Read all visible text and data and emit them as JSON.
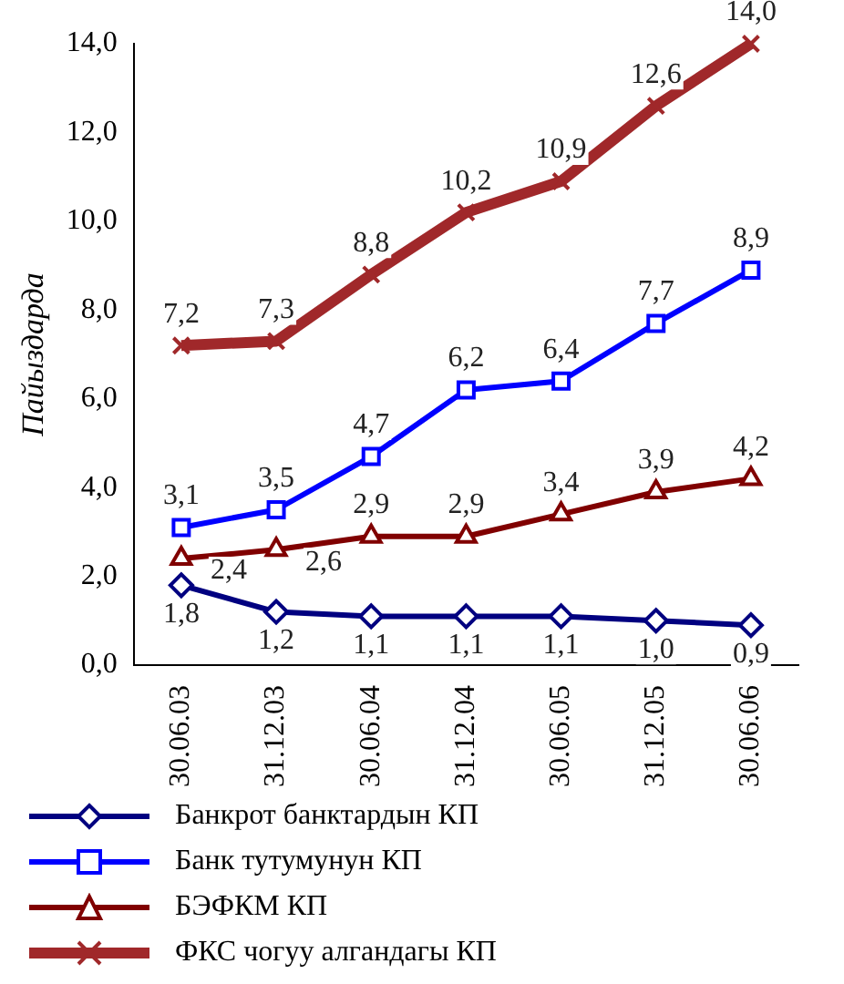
{
  "chart_data": {
    "type": "line",
    "ylabel": "Пайыздарда",
    "categories": [
      "30.06.03",
      "31.12.03",
      "30.06.04",
      "31.12.04",
      "30.06.05",
      "31.12.05",
      "30.06.06"
    ],
    "series": [
      {
        "name": "Банкрот банктардын КП",
        "color": "#000080",
        "marker": "diamond",
        "values": [
          1.8,
          1.2,
          1.1,
          1.1,
          1.1,
          1.0,
          0.9
        ],
        "value_labels": [
          "1,8",
          "1,2",
          "1,1",
          "1,1",
          "1,1",
          "1,0",
          "0,9"
        ]
      },
      {
        "name": "Банк тутумунун КП",
        "color": "#0000ff",
        "marker": "square",
        "values": [
          3.1,
          3.5,
          4.7,
          6.2,
          6.4,
          7.7,
          8.9
        ],
        "value_labels": [
          "3,1",
          "3,5",
          "4,7",
          "6,2",
          "6,4",
          "7,7",
          "8,9"
        ]
      },
      {
        "name": "БЭФКМ КП",
        "color": "#800000",
        "marker": "triangle",
        "values": [
          2.4,
          2.6,
          2.9,
          2.9,
          3.4,
          3.9,
          4.2
        ],
        "value_labels": [
          "2,4",
          "2,6",
          "2,9",
          "2,9",
          "3,4",
          "3,9",
          "4,2"
        ]
      },
      {
        "name": "ФКС чогуу алгандагы КП",
        "color": "#a0282a",
        "marker": "cross",
        "values": [
          7.2,
          7.3,
          8.8,
          10.2,
          10.9,
          12.6,
          14.0
        ],
        "value_labels": [
          "7,2",
          "7,3",
          "8,8",
          "10,2",
          "10,9",
          "12,6",
          "14,0"
        ]
      }
    ],
    "ylim": [
      0,
      14
    ],
    "yticks": [
      {
        "value": 0,
        "label": "0,0"
      },
      {
        "value": 2,
        "label": "2,0"
      },
      {
        "value": 4,
        "label": "4,0"
      },
      {
        "value": 6,
        "label": "6,0"
      },
      {
        "value": 8,
        "label": "8,0"
      },
      {
        "value": 10,
        "label": "10,0"
      },
      {
        "value": 12,
        "label": "12,0"
      },
      {
        "value": 14,
        "label": "14,0"
      }
    ],
    "grid": false,
    "legend": "bottom",
    "line_style": "solid"
  }
}
